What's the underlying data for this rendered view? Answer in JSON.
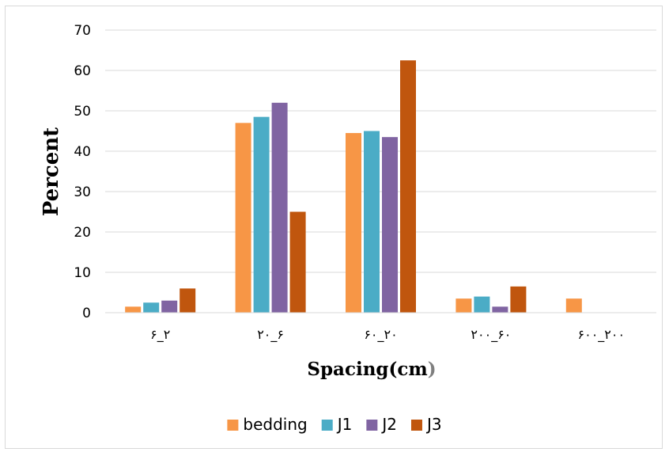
{
  "chart_data": {
    "type": "bar",
    "categories": [
      "۶_۲",
      "۲۰_۶",
      "۶۰_۲۰",
      "۲۰۰_۶۰",
      "۶۰۰_۲۰۰"
    ],
    "series": [
      {
        "name": "bedding",
        "color": "#F79646",
        "values": [
          1.5,
          47,
          44.5,
          3.5,
          3.5
        ]
      },
      {
        "name": "J1",
        "color": "#4BACC6",
        "values": [
          2.5,
          48.5,
          45,
          4,
          0
        ]
      },
      {
        "name": "J2",
        "color": "#8064A2",
        "values": [
          3,
          52,
          43.5,
          1.5,
          0
        ]
      },
      {
        "name": "J3",
        "color": "#C0560E",
        "values": [
          6,
          25,
          62.5,
          6.5,
          0
        ]
      }
    ],
    "ylim": [
      0,
      70
    ],
    "yticks": [
      "0",
      "10",
      "20",
      "30",
      "40",
      "50",
      "60",
      "70"
    ],
    "ylabel": "Percent",
    "xlabel_main": "Spacing(cm",
    "xlabel_paren": ")",
    "xlabel_paren_color": "#7F7F7F",
    "grid": true,
    "legend_position": "bottom"
  }
}
